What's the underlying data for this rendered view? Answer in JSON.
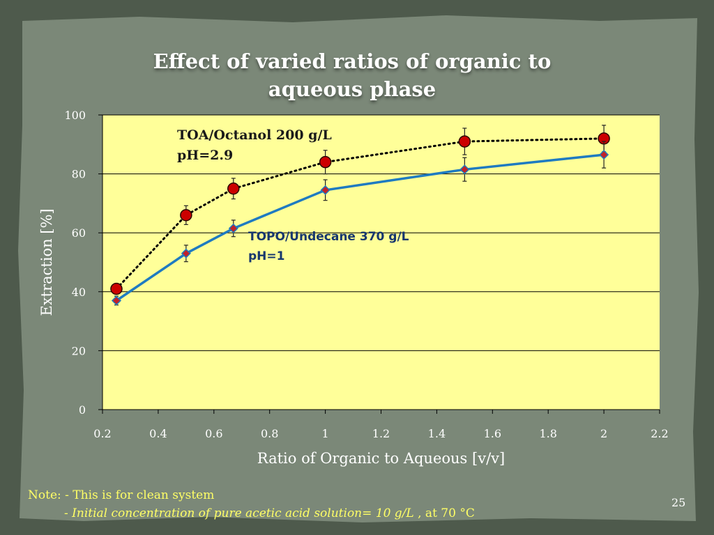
{
  "slide": {
    "title_line1": "Effect of  varied ratios of organic to",
    "title_line2": "aqueous phase",
    "note_line1": "Note: - This is for clean system",
    "note_line2_prefix": "- ",
    "note_line2_italic": "Initial concentration of pure acetic acid solution= 10 g/L",
    "note_line2_suffix": " , at 70 °C",
    "page_number": "25"
  },
  "annotations": {
    "toa_line1": "TOA/Octanol 200 g/L",
    "toa_line2": "pH=2.9",
    "topo_line1": "TOPO/Undecane 370 g/L",
    "topo_line2": "pH=1"
  },
  "colors": {
    "plot_bg": "#ffff99",
    "toa_marker": "#cc0000",
    "topo_line": "#1f7bc1",
    "topo_marker": "#c0222a",
    "note_text": "#ffff66",
    "slide_bg": "#5f6a5c"
  },
  "chart_data": {
    "type": "line",
    "title": "",
    "xlabel": "Ratio of Organic to Aqueous [v/v]",
    "ylabel": "Extraction [%]",
    "xlim": [
      0.2,
      2.2
    ],
    "ylim": [
      0,
      100
    ],
    "x_ticks": [
      "0.2",
      "0.4",
      "0.6",
      "0.8",
      "1",
      "1.2",
      "1.4",
      "1.6",
      "1.8",
      "2",
      "2.2"
    ],
    "y_ticks": [
      "0",
      "20",
      "40",
      "60",
      "80",
      "100"
    ],
    "grid": "horizontal",
    "series": [
      {
        "name": "TOA/Octanol 200 g/L",
        "style": "dotted",
        "marker": "circle",
        "x": [
          0.25,
          0.5,
          0.67,
          1,
          1.5,
          2
        ],
        "y": [
          41,
          66,
          75,
          84,
          91,
          92
        ],
        "error": [
          1.5,
          3.2,
          3.5,
          4.0,
          4.5,
          4.5
        ]
      },
      {
        "name": "TOPO/Undecane 370 g/L",
        "style": "solid",
        "marker": "diamond",
        "x": [
          0.25,
          0.5,
          0.67,
          1,
          1.5,
          2
        ],
        "y": [
          37,
          53,
          61.5,
          74.5,
          81.5,
          86.5
        ],
        "error": [
          1.5,
          2.8,
          2.8,
          3.5,
          4.0,
          4.5
        ]
      }
    ]
  }
}
